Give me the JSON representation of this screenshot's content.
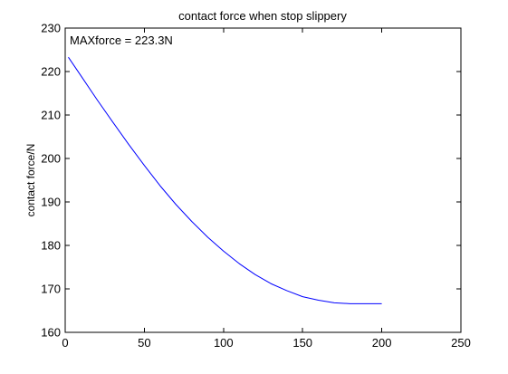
{
  "chart_data": {
    "type": "line",
    "title": "contact force when stop slippery",
    "xlabel": "",
    "ylabel": "contact force/N",
    "xlim": [
      0,
      250
    ],
    "ylim": [
      160,
      230
    ],
    "xticks": [
      0,
      50,
      100,
      150,
      200,
      250
    ],
    "yticks": [
      160,
      170,
      180,
      190,
      200,
      210,
      220,
      230
    ],
    "grid": false,
    "annotation": "MAXforce = 223.3N",
    "colors": {
      "line": "#0000ff",
      "axes": "#000000",
      "background": "#ffffff"
    },
    "series": [
      {
        "x": [
          2,
          10,
          20,
          30,
          40,
          50,
          60,
          70,
          80,
          90,
          100,
          110,
          120,
          130,
          140,
          150,
          160,
          170,
          180,
          190,
          200
        ],
        "values": [
          223.3,
          219.0,
          213.6,
          208.4,
          203.3,
          198.4,
          193.7,
          189.4,
          185.5,
          181.9,
          178.7,
          175.8,
          173.3,
          171.2,
          169.6,
          168.2,
          167.4,
          166.8,
          166.6,
          166.6,
          166.6
        ]
      }
    ]
  }
}
